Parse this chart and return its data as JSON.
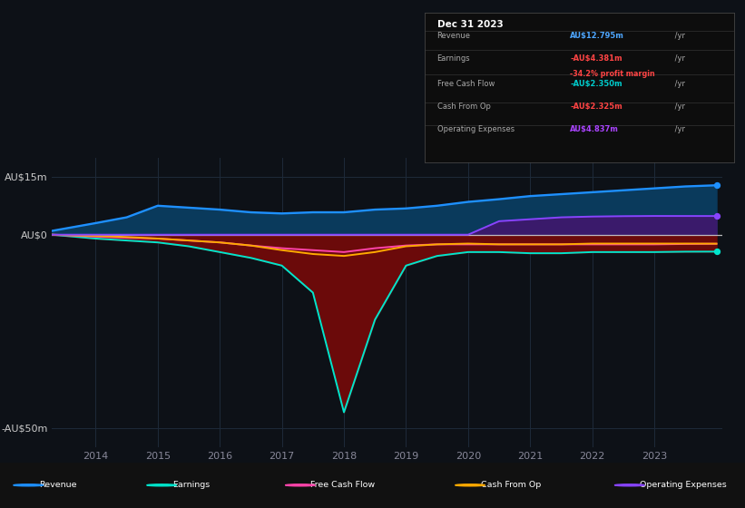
{
  "bg_color": "#0d1117",
  "plot_bg_color": "#111827",
  "title": "Dec 31 2023",
  "years": [
    2013.3,
    2014.0,
    2014.5,
    2015.0,
    2015.5,
    2016.0,
    2016.5,
    2017.0,
    2017.5,
    2018.0,
    2018.5,
    2019.0,
    2019.5,
    2020.0,
    2020.5,
    2021.0,
    2021.5,
    2022.0,
    2022.5,
    2023.0,
    2023.5,
    2024.0
  ],
  "revenue": [
    1.0,
    3.0,
    4.5,
    7.5,
    7.0,
    6.5,
    5.8,
    5.5,
    5.8,
    5.8,
    6.5,
    6.8,
    7.5,
    8.5,
    9.2,
    10.0,
    10.5,
    11.0,
    11.5,
    12.0,
    12.5,
    12.8
  ],
  "earnings": [
    0.0,
    -1.0,
    -1.5,
    -2.0,
    -3.0,
    -4.5,
    -6.0,
    -8.0,
    -15.0,
    -46.0,
    -22.0,
    -8.0,
    -5.5,
    -4.5,
    -4.5,
    -4.8,
    -4.8,
    -4.5,
    -4.5,
    -4.5,
    -4.4,
    -4.38
  ],
  "free_cash_flow": [
    0.0,
    -0.5,
    -0.8,
    -1.0,
    -1.5,
    -2.0,
    -2.8,
    -3.5,
    -4.0,
    -4.5,
    -3.5,
    -2.8,
    -2.5,
    -2.5,
    -2.5,
    -2.5,
    -2.5,
    -2.5,
    -2.5,
    -2.5,
    -2.4,
    -2.35
  ],
  "cash_from_op": [
    0.0,
    -0.3,
    -0.6,
    -1.0,
    -1.5,
    -2.0,
    -2.8,
    -4.0,
    -5.0,
    -5.5,
    -4.5,
    -3.0,
    -2.5,
    -2.3,
    -2.5,
    -2.5,
    -2.5,
    -2.3,
    -2.3,
    -2.3,
    -2.3,
    -2.325
  ],
  "operating_expenses": [
    0.0,
    0.0,
    0.0,
    0.0,
    0.0,
    0.0,
    0.0,
    0.0,
    0.0,
    0.0,
    0.0,
    0.0,
    0.0,
    0.0,
    3.5,
    4.0,
    4.5,
    4.7,
    4.8,
    4.85,
    4.84,
    4.837
  ],
  "revenue_color": "#1E90FF",
  "revenue_fill_color": "#0a3a5c",
  "earnings_color": "#00e5cc",
  "earnings_fill_color": "#6b0a0a",
  "free_cash_flow_color": "#ff44aa",
  "cash_from_op_color": "#ffaa00",
  "operating_expenses_color": "#8844ff",
  "operating_expenses_fill": "#3a1a6b",
  "ylim": [
    -55,
    20
  ],
  "xlim": [
    2013.3,
    2024.1
  ],
  "yticks": [
    15,
    0,
    -50
  ],
  "ytick_labels": [
    "AU$15m",
    "AU$0",
    "-AU$50m"
  ],
  "xticks": [
    2014,
    2015,
    2016,
    2017,
    2018,
    2019,
    2020,
    2021,
    2022,
    2023
  ],
  "table_rows": [
    {
      "label": "Revenue",
      "value": "AU$12.795m",
      "suffix": " /yr",
      "color": "#4da6ff",
      "extra": null
    },
    {
      "label": "Earnings",
      "value": "-AU$4.381m",
      "suffix": " /yr",
      "color": "#ff4444",
      "extra": "-34.2% profit margin"
    },
    {
      "label": "Free Cash Flow",
      "value": "-AU$2.350m",
      "suffix": " /yr",
      "color": "#00cccc",
      "extra": null
    },
    {
      "label": "Cash From Op",
      "value": "-AU$2.325m",
      "suffix": " /yr",
      "color": "#ff4444",
      "extra": null
    },
    {
      "label": "Operating Expenses",
      "value": "AU$4.837m",
      "suffix": " /yr",
      "color": "#aa44ff",
      "extra": null
    }
  ],
  "legend_items": [
    {
      "label": "Revenue",
      "color": "#1E90FF"
    },
    {
      "label": "Earnings",
      "color": "#00e5cc"
    },
    {
      "label": "Free Cash Flow",
      "color": "#ff44aa"
    },
    {
      "label": "Cash From Op",
      "color": "#ffaa00"
    },
    {
      "label": "Operating Expenses",
      "color": "#8844ff"
    }
  ]
}
